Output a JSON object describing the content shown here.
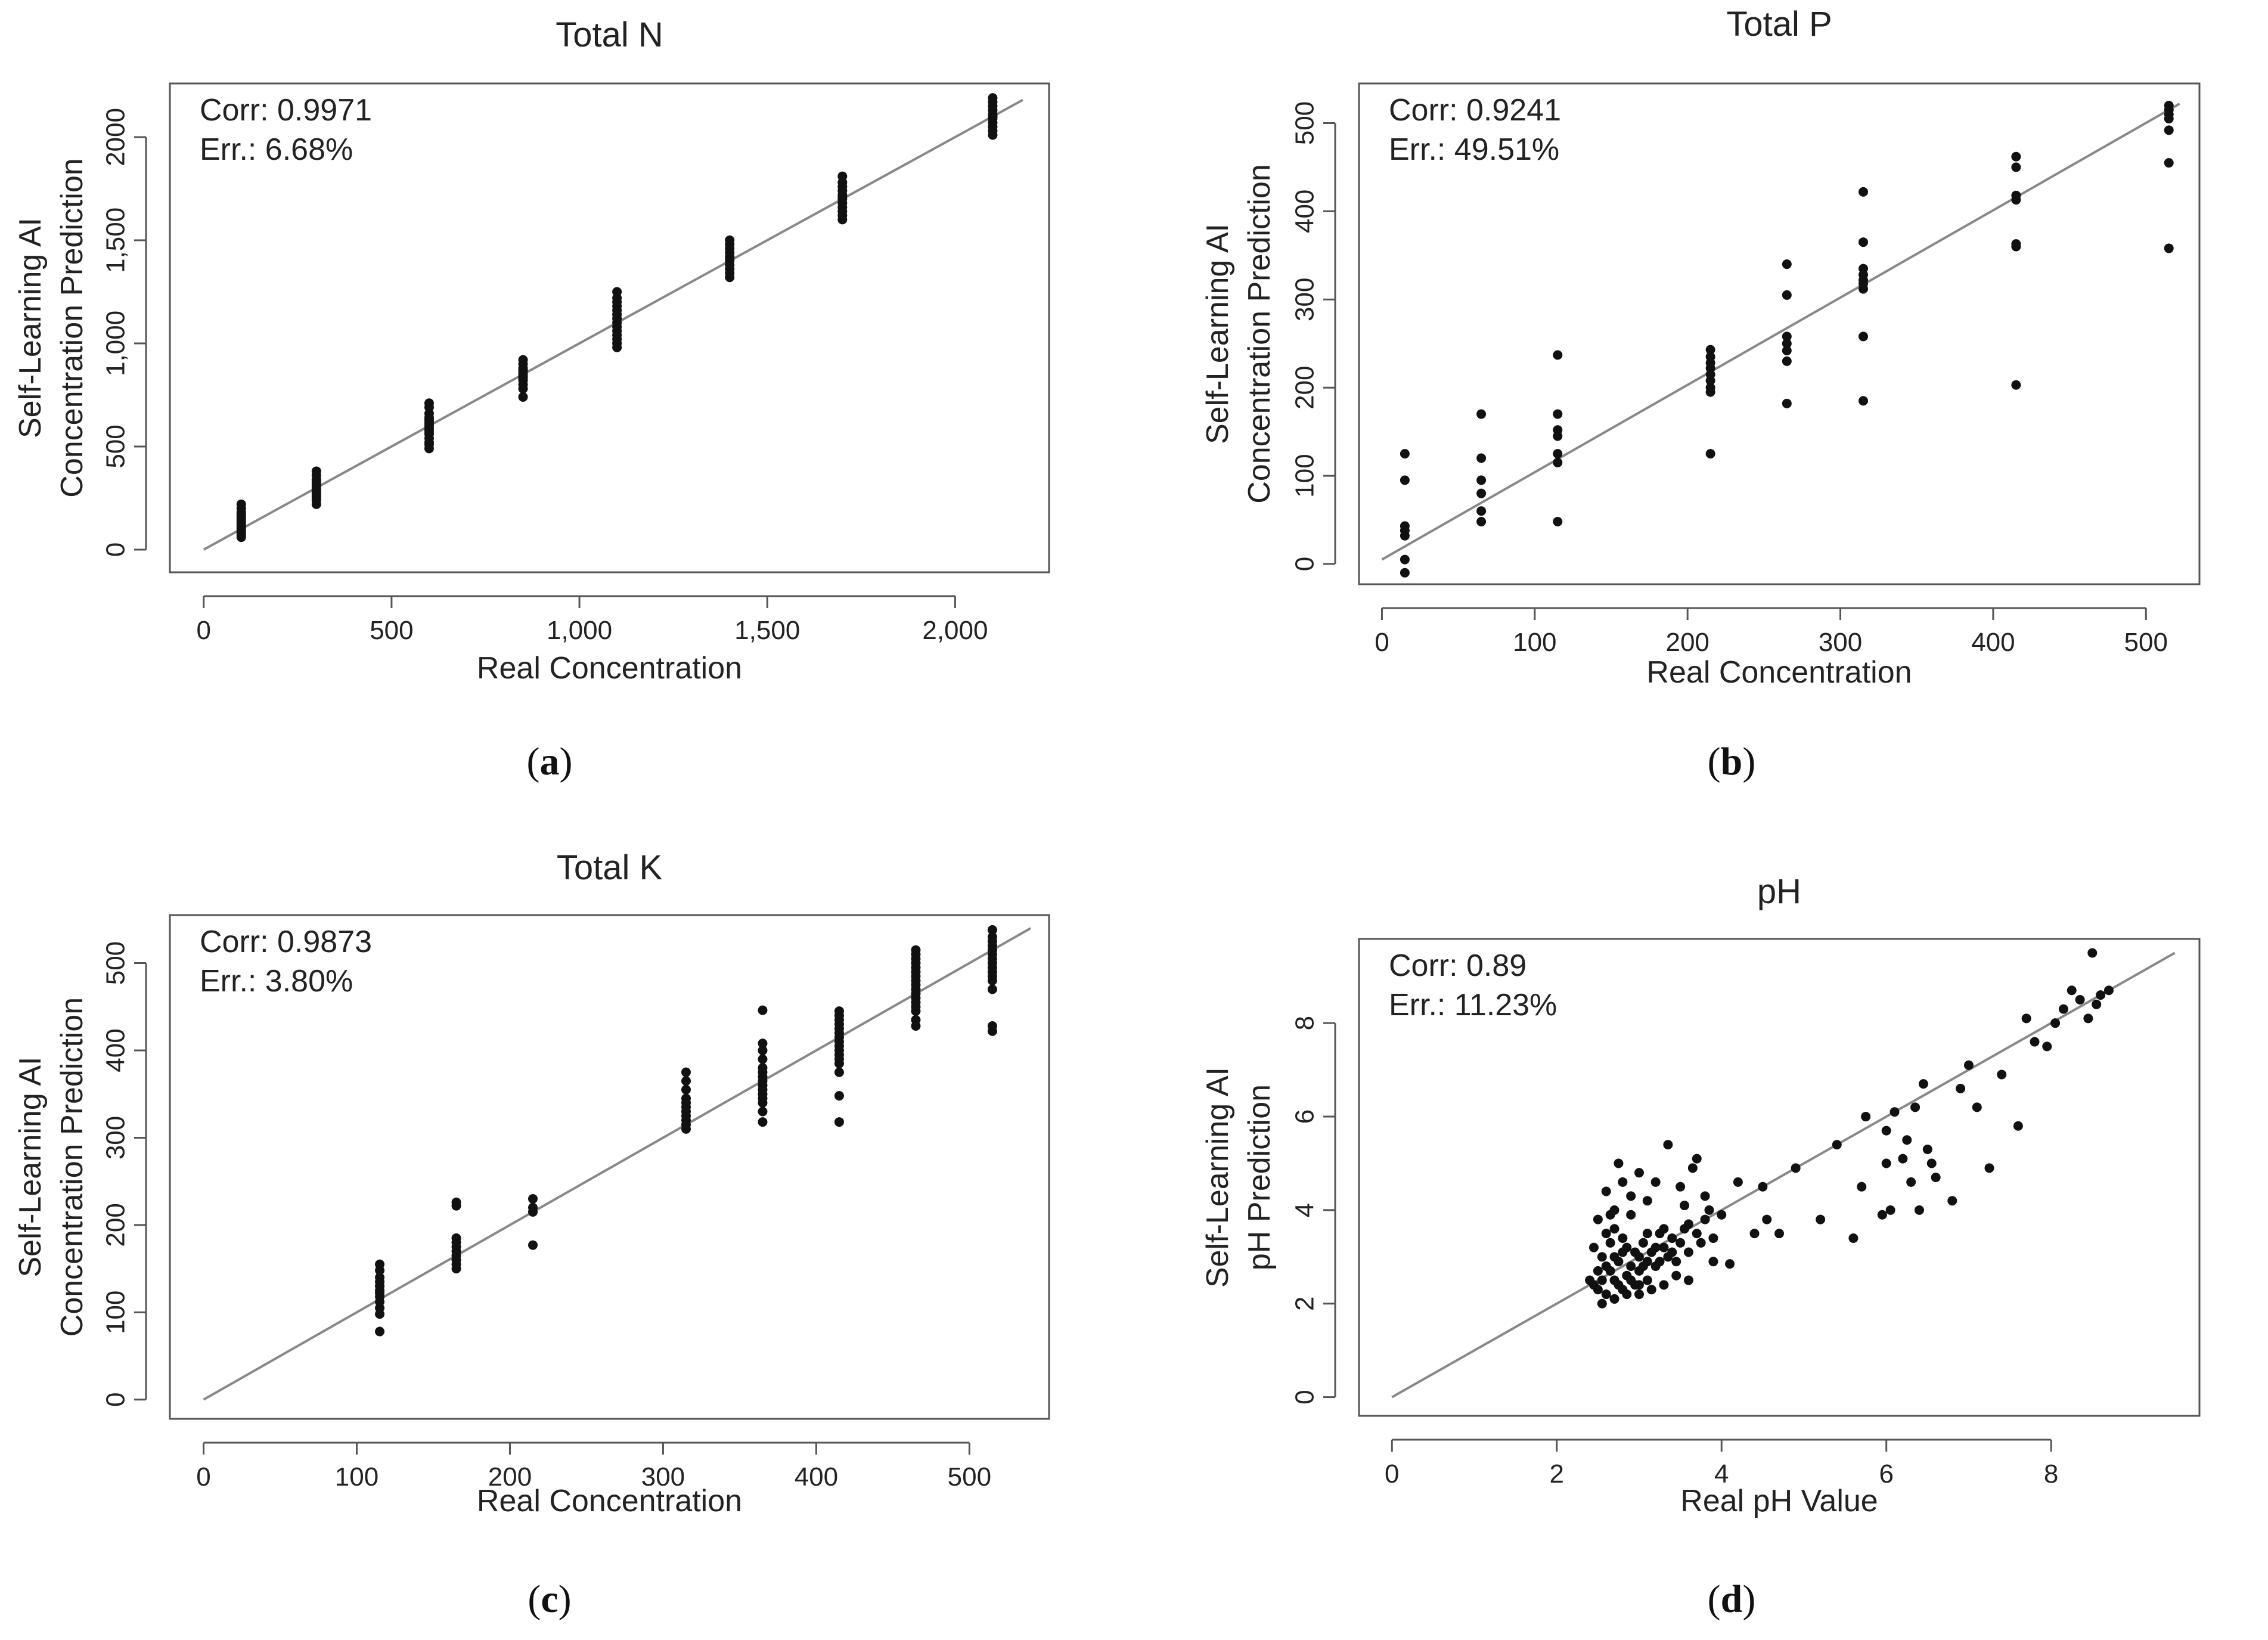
{
  "chart_data": [
    {
      "id": "a",
      "type": "scatter",
      "title": "Total N",
      "xlabel": "Real Concentration",
      "ylabel": [
        "Self-Learning AI",
        "Concentration Prediction"
      ],
      "caption": "a",
      "annotation": {
        "corr": "Corr: 0.9971",
        "err": "Err.: 6.68%"
      },
      "xlim": [
        -90,
        2250
      ],
      "ylim": [
        -110,
        2260
      ],
      "xticks": [
        0,
        500,
        1000,
        1500,
        2000
      ],
      "xtick_labels": [
        "0",
        "500",
        "1,000",
        "1,500",
        "2,000"
      ],
      "yticks": [
        0,
        500,
        1000,
        1500,
        2000
      ],
      "ytick_labels": [
        "0",
        "500",
        "1,000",
        "1,500",
        "2000"
      ],
      "fit_line": [
        [
          0,
          0
        ],
        [
          2180,
          2180
        ]
      ],
      "groups": [
        {
          "x": 100,
          "values": [
            60,
            70,
            80,
            90,
            100,
            110,
            120,
            130,
            140,
            150,
            160,
            170,
            180,
            200,
            220
          ]
        },
        {
          "x": 300,
          "values": [
            220,
            240,
            250,
            260,
            270,
            280,
            290,
            300,
            310,
            320,
            330,
            340,
            360,
            380
          ]
        },
        {
          "x": 600,
          "values": [
            490,
            510,
            520,
            540,
            560,
            570,
            580,
            590,
            600,
            610,
            620,
            630,
            640,
            660,
            690,
            710
          ]
        },
        {
          "x": 850,
          "values": [
            740,
            780,
            800,
            820,
            830,
            840,
            850,
            860,
            870,
            880,
            900,
            920
          ]
        },
        {
          "x": 1100,
          "values": [
            980,
            1000,
            1020,
            1040,
            1060,
            1080,
            1100,
            1120,
            1140,
            1160,
            1180,
            1200,
            1220,
            1250
          ]
        },
        {
          "x": 1400,
          "values": [
            1320,
            1340,
            1360,
            1380,
            1400,
            1410,
            1420,
            1440,
            1460,
            1480,
            1500
          ]
        },
        {
          "x": 1700,
          "values": [
            1600,
            1620,
            1640,
            1660,
            1680,
            1700,
            1710,
            1720,
            1740,
            1760,
            1780,
            1810
          ]
        },
        {
          "x": 2100,
          "values": [
            2010,
            2030,
            2050,
            2070,
            2090,
            2100,
            2110,
            2130,
            2150,
            2170,
            2190
          ]
        }
      ]
    },
    {
      "id": "b",
      "type": "scatter",
      "title": "Total P",
      "xlabel": "Real Concentration",
      "ylabel": [
        "Self-Learning AI",
        "Concentration Prediction"
      ],
      "caption": "b",
      "annotation": {
        "corr": "Corr: 0.9241",
        "err": "Err.: 49.51%"
      },
      "xlim": [
        -15,
        535
      ],
      "ylim": [
        -23,
        545
      ],
      "xticks": [
        0,
        100,
        200,
        300,
        400,
        500
      ],
      "xtick_labels": [
        "0",
        "100",
        "200",
        "300",
        "400",
        "500"
      ],
      "yticks": [
        0,
        100,
        200,
        300,
        400,
        500
      ],
      "ytick_labels": [
        "0",
        "100",
        "200",
        "300",
        "400",
        "500"
      ],
      "fit_line": [
        [
          0,
          5
        ],
        [
          522,
          522
        ]
      ],
      "groups": [
        {
          "x": 15,
          "values": [
            -10,
            5,
            32,
            38,
            43,
            95,
            125
          ]
        },
        {
          "x": 65,
          "values": [
            48,
            60,
            80,
            95,
            120,
            170
          ]
        },
        {
          "x": 115,
          "values": [
            48,
            115,
            125,
            145,
            152,
            170,
            237
          ]
        },
        {
          "x": 215,
          "values": [
            125,
            195,
            200,
            208,
            215,
            222,
            228,
            235,
            243
          ]
        },
        {
          "x": 265,
          "values": [
            182,
            230,
            242,
            250,
            258,
            305,
            340
          ]
        },
        {
          "x": 315,
          "values": [
            185,
            258,
            312,
            318,
            322,
            328,
            335,
            365,
            422
          ]
        },
        {
          "x": 415,
          "values": [
            203,
            360,
            363,
            413,
            418,
            450,
            462
          ]
        },
        {
          "x": 515,
          "values": [
            358,
            455,
            492,
            505,
            510,
            515,
            520
          ]
        }
      ]
    },
    {
      "id": "c",
      "type": "scatter",
      "title": "Total K",
      "xlabel": "Real Concentration",
      "ylabel": [
        "Self-Learning AI",
        "Concentration Prediction"
      ],
      "caption": "c",
      "annotation": {
        "corr": "Corr: 0.9873",
        "err": "Err.: 3.80%"
      },
      "xlim": [
        -22,
        552
      ],
      "ylim": [
        -22,
        555
      ],
      "xticks": [
        0,
        100,
        200,
        300,
        400,
        500
      ],
      "xtick_labels": [
        "0",
        "100",
        "200",
        "300",
        "400",
        "500"
      ],
      "yticks": [
        0,
        100,
        200,
        300,
        400,
        500
      ],
      "ytick_labels": [
        "0",
        "100",
        "200",
        "300",
        "400",
        "500"
      ],
      "fit_line": [
        [
          0,
          0
        ],
        [
          540,
          540
        ]
      ],
      "groups": [
        {
          "x": 115,
          "values": [
            78,
            98,
            105,
            112,
            118,
            122,
            125,
            130,
            135,
            140,
            148,
            155
          ]
        },
        {
          "x": 165,
          "values": [
            150,
            155,
            160,
            165,
            170,
            175,
            180,
            185,
            222,
            226
          ]
        },
        {
          "x": 215,
          "values": [
            177,
            215,
            220,
            230
          ]
        },
        {
          "x": 315,
          "values": [
            310,
            315,
            320,
            325,
            330,
            335,
            340,
            345,
            355,
            365,
            375
          ]
        },
        {
          "x": 365,
          "values": [
            318,
            330,
            340,
            345,
            350,
            355,
            360,
            365,
            370,
            375,
            380,
            390,
            400,
            408,
            446
          ]
        },
        {
          "x": 415,
          "values": [
            318,
            348,
            375,
            385,
            390,
            395,
            400,
            405,
            410,
            415,
            420,
            425,
            430,
            435,
            440,
            445
          ]
        },
        {
          "x": 465,
          "values": [
            428,
            435,
            445,
            450,
            455,
            460,
            465,
            470,
            475,
            480,
            485,
            490,
            495,
            500,
            505,
            510,
            515
          ]
        },
        {
          "x": 515,
          "values": [
            422,
            428,
            470,
            480,
            485,
            490,
            495,
            500,
            505,
            510,
            515,
            520,
            525,
            530,
            538
          ]
        }
      ]
    },
    {
      "id": "d",
      "type": "scatter",
      "title": "pH",
      "xlabel": "Real pH Value",
      "ylabel": [
        "Self-Learning AI",
        "pH Prediction"
      ],
      "caption": "d",
      "annotation": {
        "corr": "Corr: 0.89",
        "err": "Err.: 11.23%"
      },
      "xlim": [
        -0.4,
        9.8
      ],
      "ylim": [
        -0.4,
        9.8
      ],
      "xticks": [
        0,
        2,
        4,
        6,
        8
      ],
      "xtick_labels": [
        "0",
        "2",
        "4",
        "6",
        "8"
      ],
      "yticks": [
        0,
        2,
        4,
        6,
        8
      ],
      "ytick_labels": [
        "0",
        "2",
        "4",
        "6",
        "8"
      ],
      "fit_line": [
        [
          0,
          0
        ],
        [
          9.5,
          9.5
        ]
      ],
      "points": [
        [
          2.45,
          2.4
        ],
        [
          2.5,
          2.7
        ],
        [
          2.55,
          3.0
        ],
        [
          2.6,
          2.2
        ],
        [
          2.6,
          2.8
        ],
        [
          2.65,
          3.3
        ],
        [
          2.7,
          2.5
        ],
        [
          2.7,
          3.6
        ],
        [
          2.75,
          2.9
        ],
        [
          2.8,
          2.3
        ],
        [
          2.8,
          3.1
        ],
        [
          2.85,
          2.6
        ],
        [
          2.9,
          2.8
        ],
        [
          2.9,
          3.9
        ],
        [
          2.95,
          2.4
        ],
        [
          3.0,
          3.0
        ],
        [
          3.0,
          2.7
        ],
        [
          3.05,
          3.3
        ],
        [
          3.1,
          2.9
        ],
        [
          3.1,
          2.5
        ],
        [
          3.15,
          3.1
        ],
        [
          3.2,
          2.8
        ],
        [
          3.25,
          3.5
        ],
        [
          3.3,
          3.2
        ],
        [
          3.35,
          3.0
        ],
        [
          3.4,
          3.4
        ],
        [
          3.45,
          2.9
        ],
        [
          3.5,
          3.3
        ],
        [
          3.55,
          3.6
        ],
        [
          3.6,
          3.1
        ],
        [
          3.7,
          3.5
        ],
        [
          3.8,
          3.8
        ],
        [
          3.9,
          3.4
        ],
        [
          4.0,
          3.9
        ],
        [
          2.4,
          2.5
        ],
        [
          2.45,
          3.2
        ],
        [
          2.5,
          2.3
        ],
        [
          2.55,
          2.5
        ],
        [
          2.6,
          3.5
        ],
        [
          2.65,
          2.7
        ],
        [
          2.7,
          3.0
        ],
        [
          2.75,
          2.4
        ],
        [
          2.8,
          3.4
        ],
        [
          2.85,
          3.2
        ],
        [
          2.9,
          2.5
        ],
        [
          2.95,
          3.1
        ],
        [
          3.0,
          2.4
        ],
        [
          3.05,
          2.8
        ],
        [
          3.1,
          3.5
        ],
        [
          3.2,
          3.2
        ],
        [
          3.25,
          2.9
        ],
        [
          3.3,
          3.6
        ],
        [
          3.4,
          3.1
        ],
        [
          3.6,
          3.7
        ],
        [
          3.75,
          3.3
        ],
        [
          3.85,
          4.0
        ],
        [
          2.5,
          3.8
        ],
        [
          2.6,
          4.4
        ],
        [
          2.7,
          4.0
        ],
        [
          2.8,
          4.6
        ],
        [
          2.75,
          5.0
        ],
        [
          2.9,
          4.3
        ],
        [
          3.0,
          4.8
        ],
        [
          3.1,
          4.2
        ],
        [
          3.2,
          4.6
        ],
        [
          3.35,
          5.4
        ],
        [
          3.5,
          4.5
        ],
        [
          3.55,
          4.1
        ],
        [
          3.65,
          4.9
        ],
        [
          3.7,
          5.1
        ],
        [
          3.8,
          4.3
        ],
        [
          2.65,
          3.9
        ],
        [
          2.55,
          2.0
        ],
        [
          2.7,
          2.1
        ],
        [
          2.85,
          2.2
        ],
        [
          3.0,
          2.2
        ],
        [
          3.15,
          2.3
        ],
        [
          3.3,
          2.4
        ],
        [
          3.45,
          2.6
        ],
        [
          3.6,
          2.5
        ],
        [
          3.9,
          2.9
        ],
        [
          4.1,
          2.85
        ],
        [
          4.2,
          4.6
        ],
        [
          4.4,
          3.5
        ],
        [
          4.5,
          4.5
        ],
        [
          4.55,
          3.8
        ],
        [
          4.7,
          3.5
        ],
        [
          4.9,
          4.9
        ],
        [
          5.2,
          3.8
        ],
        [
          5.4,
          5.4
        ],
        [
          5.6,
          3.4
        ],
        [
          5.75,
          6.0
        ],
        [
          5.7,
          4.5
        ],
        [
          5.95,
          3.9
        ],
        [
          6.0,
          5.0
        ],
        [
          6.05,
          4.0
        ],
        [
          6.2,
          5.1
        ],
        [
          6.3,
          4.6
        ],
        [
          6.4,
          4.0
        ],
        [
          6.5,
          5.3
        ],
        [
          6.6,
          4.7
        ],
        [
          6.8,
          4.2
        ],
        [
          6.9,
          6.6
        ],
        [
          7.0,
          7.1
        ],
        [
          7.1,
          6.2
        ],
        [
          7.25,
          4.9
        ],
        [
          7.4,
          6.9
        ],
        [
          7.6,
          5.8
        ],
        [
          7.7,
          8.1
        ],
        [
          7.8,
          7.6
        ],
        [
          7.95,
          7.5
        ],
        [
          8.05,
          8.0
        ],
        [
          8.15,
          8.3
        ],
        [
          8.25,
          8.7
        ],
        [
          8.35,
          8.5
        ],
        [
          8.45,
          8.1
        ],
        [
          8.55,
          8.4
        ],
        [
          8.5,
          9.5
        ],
        [
          8.6,
          8.6
        ],
        [
          8.7,
          8.7
        ],
        [
          6.1,
          6.1
        ],
        [
          6.25,
          5.5
        ],
        [
          6.35,
          6.2
        ],
        [
          6.0,
          5.7
        ],
        [
          6.45,
          6.7
        ],
        [
          6.55,
          5.0
        ]
      ]
    }
  ]
}
